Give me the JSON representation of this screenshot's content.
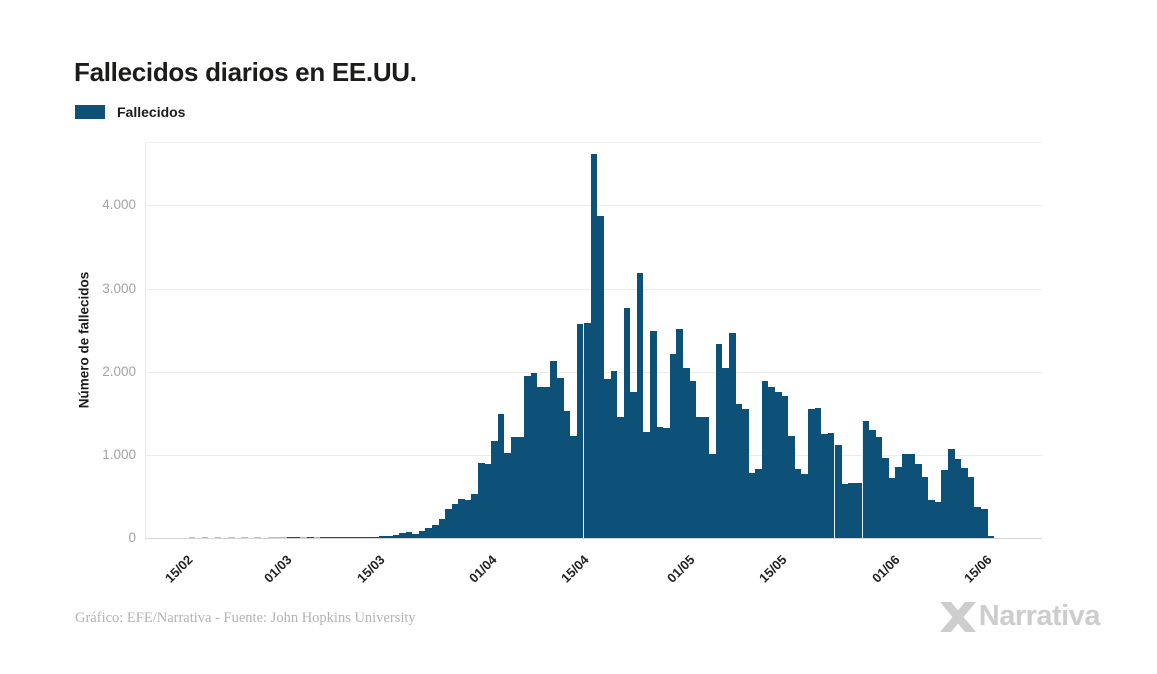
{
  "title": "Fallecidos diarios en EE.UU.",
  "legend": {
    "label": "Fallecidos",
    "swatch_color": "#0d5078"
  },
  "footer": {
    "credit": "Gráfico: EFE/Narrativa - Fuente: John Hopkins University",
    "brand": "Narrativa"
  },
  "colors": {
    "bar": "#0d5078",
    "faint_bar": "#a9c3d3",
    "grid": "#ececec",
    "y_tick_text": "#a4a4a4",
    "x_tick_text": "#222221",
    "title_text": "#1c1c1b",
    "footer_text": "#b3b3b3",
    "brand_text": "#cdcdcd"
  },
  "chart_data": {
    "type": "bar",
    "title": "Fallecidos diarios en EE.UU.",
    "series_name": "Fallecidos",
    "xlabel": "",
    "ylabel": "Número de fallecidos",
    "ylim": [
      0,
      4750
    ],
    "grid": true,
    "legend_position": "top-left",
    "ytick_values": [
      0,
      1000,
      2000,
      3000,
      4000
    ],
    "ytick_labels": [
      "0",
      "1.000",
      "2.000",
      "3.000",
      "4.000"
    ],
    "xtick_labels": [
      "15/02",
      "01/03",
      "15/03",
      "01/04",
      "15/04",
      "01/05",
      "15/05",
      "01/06",
      "15/06"
    ],
    "xtick_indices": [
      0,
      15,
      29,
      46,
      60,
      76,
      90,
      107,
      121
    ],
    "gap_before_indices": [
      61,
      99,
      103
    ],
    "categories": [
      "15/02",
      "16/02",
      "17/02",
      "18/02",
      "19/02",
      "20/02",
      "21/02",
      "22/02",
      "23/02",
      "24/02",
      "25/02",
      "26/02",
      "27/02",
      "28/02",
      "29/02",
      "01/03",
      "02/03",
      "03/03",
      "04/03",
      "05/03",
      "06/03",
      "07/03",
      "08/03",
      "09/03",
      "10/03",
      "11/03",
      "12/03",
      "13/03",
      "14/03",
      "15/03",
      "16/03",
      "17/03",
      "18/03",
      "19/03",
      "20/03",
      "21/03",
      "22/03",
      "23/03",
      "24/03",
      "25/03",
      "26/03",
      "27/03",
      "28/03",
      "29/03",
      "30/03",
      "31/03",
      "01/04",
      "02/04",
      "03/04",
      "04/04",
      "05/04",
      "06/04",
      "07/04",
      "08/04",
      "09/04",
      "10/04",
      "11/04",
      "12/04",
      "13/04",
      "14/04",
      "15/04",
      "16/04",
      "17/04",
      "18/04",
      "19/04",
      "20/04",
      "21/04",
      "22/04",
      "23/04",
      "24/04",
      "25/04",
      "26/04",
      "27/04",
      "28/04",
      "29/04",
      "30/04",
      "01/05",
      "02/05",
      "03/05",
      "04/05",
      "05/05",
      "06/05",
      "07/05",
      "08/05",
      "09/05",
      "10/05",
      "11/05",
      "12/05",
      "13/05",
      "14/05",
      "15/05",
      "16/05",
      "17/05",
      "18/05",
      "19/05",
      "20/05",
      "21/05",
      "22/05",
      "23/05",
      "24/05",
      "25/05",
      "26/05",
      "27/05",
      "28/05",
      "29/05",
      "30/05",
      "31/05",
      "01/06",
      "02/06",
      "03/06",
      "04/06",
      "05/06",
      "06/06",
      "07/06",
      "08/06",
      "09/06",
      "10/06",
      "11/06",
      "12/06",
      "13/06",
      "14/06",
      "15/06",
      "16/06"
    ],
    "values": [
      0,
      1,
      0,
      1,
      0,
      1,
      0,
      1,
      0,
      1,
      0,
      1,
      0,
      1,
      2,
      2,
      6,
      4,
      3,
      5,
      3,
      4,
      6,
      4,
      5,
      8,
      4,
      11,
      13,
      15,
      20,
      30,
      40,
      60,
      75,
      50,
      85,
      115,
      160,
      230,
      350,
      410,
      470,
      455,
      530,
      905,
      890,
      1170,
      1490,
      1025,
      1210,
      1215,
      1950,
      1990,
      1810,
      1815,
      2130,
      1930,
      1530,
      1230,
      2570,
      2590,
      4620,
      3870,
      1915,
      2010,
      1450,
      2770,
      1750,
      3190,
      1270,
      2495,
      1330,
      1320,
      2215,
      2510,
      2050,
      1890,
      1450,
      1450,
      1010,
      2335,
      2050,
      2470,
      1610,
      1550,
      785,
      830,
      1890,
      1810,
      1750,
      1710,
      1230,
      830,
      770,
      1550,
      1565,
      1250,
      1265,
      1120,
      650,
      665,
      660,
      1410,
      1300,
      1215,
      960,
      725,
      855,
      1010,
      1010,
      895,
      735,
      455,
      430,
      815,
      1070,
      950,
      840,
      735,
      370,
      345,
      25
    ]
  }
}
